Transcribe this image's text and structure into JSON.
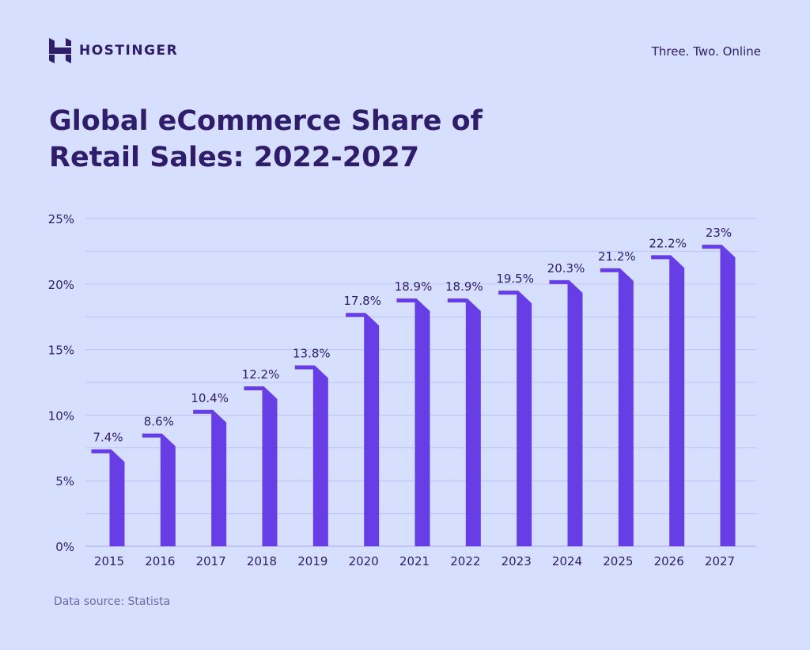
{
  "header": {
    "brand": "HOSTINGER",
    "tagline": "Three. Two. Online"
  },
  "footer": {
    "source": "Data source: Statista"
  },
  "colors": {
    "background": "#d6dffe",
    "bar": "#673de6",
    "text": "#2f1c6a",
    "grid": "#bcc3fa"
  },
  "chart_data": {
    "type": "bar",
    "title": "Global eCommerce Share of Retail Sales: 2022-2027",
    "categories": [
      "2015",
      "2016",
      "2017",
      "2018",
      "2019",
      "2020",
      "2021",
      "2022",
      "2023",
      "2024",
      "2025",
      "2026",
      "2027"
    ],
    "values": [
      7.4,
      8.6,
      10.4,
      12.2,
      13.8,
      17.8,
      18.9,
      18.9,
      19.5,
      20.3,
      21.2,
      22.2,
      23
    ],
    "data_labels": [
      "7.4%",
      "8.6%",
      "10.4%",
      "12.2%",
      "13.8%",
      "17.8%",
      "18.9%",
      "18.9%",
      "19.5%",
      "20.3%",
      "21.2%",
      "22.2%",
      "23%"
    ],
    "yticks": [
      "0%",
      "5%",
      "10%",
      "15%",
      "20%",
      "25%"
    ],
    "ylim": [
      0,
      25
    ],
    "grid": true,
    "xlabel": "",
    "ylabel": ""
  }
}
